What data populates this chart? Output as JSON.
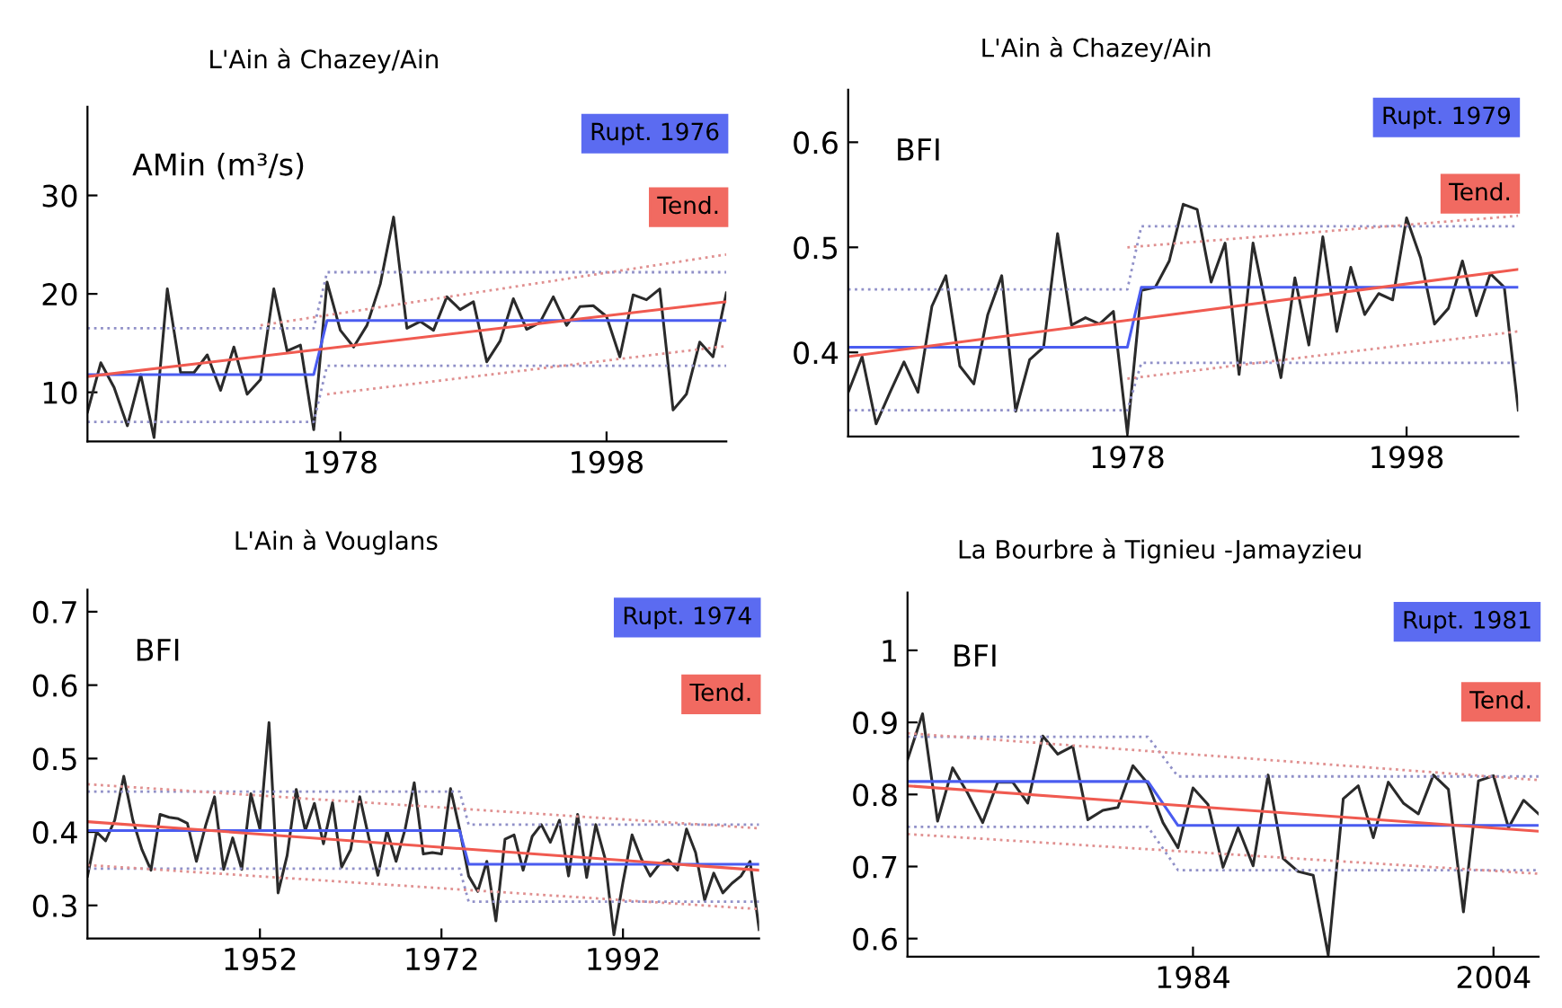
{
  "chart_data": [
    {
      "type": "line",
      "title": "L'Ain à Chazey/Ain",
      "ylabel": "AMin (m³/s)",
      "xlim": [
        1959,
        2007
      ],
      "ylim": [
        5,
        39
      ],
      "xticks": [
        1978,
        1998
      ],
      "yticks": [
        10,
        20,
        30
      ],
      "legend": "top right",
      "grid": false,
      "series": [
        {
          "color": "#2a2a2a",
          "x": [
            1959,
            1960,
            1961,
            1962,
            1963,
            1964,
            1965,
            1966,
            1967,
            1968,
            1969,
            1970,
            1971,
            1972,
            1973,
            1974,
            1975,
            1976,
            1977,
            1978,
            1979,
            1980,
            1981,
            1982,
            1983,
            1984,
            1985,
            1986,
            1987,
            1988,
            1989,
            1990,
            1991,
            1992,
            1993,
            1994,
            1995,
            1996,
            1997,
            1998,
            1999,
            2000,
            2001,
            2002,
            2003,
            2004,
            2005,
            2006,
            2007
          ],
          "values": [
            8,
            13,
            10.5,
            6.6,
            11.8,
            5.4,
            20.5,
            12,
            12,
            13.8,
            10.2,
            14.6,
            9.8,
            11.3,
            20.5,
            14.2,
            14.8,
            6.2,
            21.2,
            16.3,
            14.6,
            16.8,
            21,
            27.8,
            16.5,
            17.2,
            16.3,
            19.7,
            18.4,
            19.2,
            13.1,
            15.2,
            19.5,
            16.4,
            17.1,
            19.7,
            16.8,
            18.7,
            18.8,
            17.7,
            13.6,
            19.9,
            19.4,
            20.5,
            8.2,
            9.8,
            15.1,
            13.6,
            20.1
          ]
        },
        {
          "name": "Rupt. 1976",
          "color": "#4a5cf0",
          "x": [
            1959,
            1976,
            1977,
            2007
          ],
          "values": [
            11.8,
            11.8,
            17.3,
            17.3
          ]
        },
        {
          "name": "Tend.",
          "color": "#f05a50",
          "x": [
            1959,
            2007
          ],
          "values": [
            11.6,
            19.2
          ]
        },
        {
          "color": "#9090c8",
          "line_style": "dotted",
          "x": [
            1959,
            1976,
            1977,
            2007
          ],
          "values": [
            16.5,
            16.5,
            22.2,
            22.2
          ]
        },
        {
          "color": "#9090c8",
          "line_style": "dotted",
          "x": [
            1959,
            1976,
            1977,
            2007
          ],
          "values": [
            7,
            7,
            12.7,
            12.7
          ]
        },
        {
          "color": "#e09090",
          "line_style": "dotted",
          "x": [
            1972,
            2007
          ],
          "values": [
            16.8,
            24
          ]
        },
        {
          "color": "#e09090",
          "line_style": "dotted",
          "x": [
            1977,
            2007
          ],
          "values": [
            9.8,
            14.7
          ]
        }
      ]
    },
    {
      "type": "line",
      "title": "L'Ain à Chazey/Ain",
      "ylabel": "BFI",
      "xlim": [
        1958,
        2006
      ],
      "ylim": [
        0.32,
        0.65
      ],
      "xticks": [
        1978,
        1998
      ],
      "yticks": [
        0.4,
        0.5,
        0.6
      ],
      "legend": "top right",
      "grid": false,
      "series": [
        {
          "color": "#2a2a2a",
          "x": [
            1958,
            1959,
            1960,
            1961,
            1962,
            1963,
            1964,
            1965,
            1966,
            1967,
            1968,
            1969,
            1970,
            1971,
            1972,
            1973,
            1974,
            1975,
            1976,
            1977,
            1978,
            1979,
            1980,
            1981,
            1982,
            1983,
            1984,
            1985,
            1986,
            1987,
            1988,
            1989,
            1990,
            1991,
            1992,
            1993,
            1994,
            1995,
            1996,
            1997,
            1998,
            1999,
            2000,
            2001,
            2002,
            2003,
            2004,
            2005,
            2006
          ],
          "values": [
            0.362,
            0.396,
            0.332,
            0.362,
            0.391,
            0.362,
            0.444,
            0.473,
            0.387,
            0.37,
            0.436,
            0.473,
            0.344,
            0.393,
            0.405,
            0.513,
            0.426,
            0.433,
            0.427,
            0.439,
            0.323,
            0.459,
            0.462,
            0.487,
            0.541,
            0.536,
            0.467,
            0.504,
            0.379,
            0.504,
            0.439,
            0.376,
            0.471,
            0.407,
            0.51,
            0.42,
            0.481,
            0.436,
            0.456,
            0.45,
            0.528,
            0.49,
            0.427,
            0.442,
            0.487,
            0.435,
            0.475,
            0.462,
            0.345
          ]
        },
        {
          "name": "Rupt. 1979",
          "color": "#4a5cf0",
          "x": [
            1958,
            1978,
            1979,
            2006
          ],
          "values": [
            0.405,
            0.405,
            0.462,
            0.462
          ]
        },
        {
          "name": "Tend.",
          "color": "#f05a50",
          "x": [
            1958,
            2006
          ],
          "values": [
            0.396,
            0.479
          ]
        },
        {
          "color": "#9090c8",
          "line_style": "dotted",
          "x": [
            1958,
            1978,
            1979,
            2006
          ],
          "values": [
            0.46,
            0.46,
            0.52,
            0.52
          ]
        },
        {
          "color": "#9090c8",
          "line_style": "dotted",
          "x": [
            1958,
            1978,
            1979,
            2006
          ],
          "values": [
            0.345,
            0.345,
            0.39,
            0.39
          ]
        },
        {
          "color": "#e09090",
          "line_style": "dotted",
          "x": [
            1978,
            2006
          ],
          "values": [
            0.5,
            0.53
          ]
        },
        {
          "color": "#e09090",
          "line_style": "dotted",
          "x": [
            1978,
            2006
          ],
          "values": [
            0.375,
            0.42
          ]
        }
      ]
    },
    {
      "type": "line",
      "title": "L'Ain à Vouglans",
      "ylabel": "BFI",
      "xlim": [
        1933,
        2007
      ],
      "ylim": [
        0.255,
        0.73
      ],
      "xticks": [
        1952,
        1972,
        1992
      ],
      "yticks": [
        0.3,
        0.4,
        0.5,
        0.6,
        0.7
      ],
      "legend": "top right",
      "grid": false,
      "series": [
        {
          "color": "#2a2a2a",
          "x": [
            1933,
            1934,
            1935,
            1936,
            1937,
            1938,
            1939,
            1940,
            1941,
            1942,
            1943,
            1944,
            1945,
            1946,
            1947,
            1948,
            1949,
            1950,
            1951,
            1952,
            1953,
            1954,
            1955,
            1956,
            1957,
            1958,
            1959,
            1960,
            1961,
            1962,
            1963,
            1964,
            1965,
            1966,
            1967,
            1968,
            1969,
            1970,
            1971,
            1972,
            1973,
            1974,
            1975,
            1976,
            1977,
            1978,
            1979,
            1980,
            1981,
            1982,
            1983,
            1984,
            1985,
            1986,
            1987,
            1988,
            1989,
            1990,
            1991,
            1992,
            1993,
            1994,
            1995,
            1996,
            1997,
            1998,
            1999,
            2000,
            2001,
            2002,
            2003,
            2004,
            2005,
            2006,
            2007
          ],
          "values": [
            0.34,
            0.4,
            0.388,
            0.416,
            0.476,
            0.416,
            0.376,
            0.348,
            0.424,
            0.42,
            0.418,
            0.412,
            0.36,
            0.408,
            0.448,
            0.349,
            0.392,
            0.349,
            0.452,
            0.404,
            0.549,
            0.317,
            0.368,
            0.458,
            0.402,
            0.439,
            0.384,
            0.44,
            0.352,
            0.376,
            0.448,
            0.392,
            0.341,
            0.402,
            0.36,
            0.404,
            0.467,
            0.37,
            0.372,
            0.37,
            0.459,
            0.404,
            0.34,
            0.319,
            0.36,
            0.279,
            0.39,
            0.396,
            0.348,
            0.394,
            0.41,
            0.386,
            0.416,
            0.34,
            0.424,
            0.338,
            0.41,
            0.365,
            0.26,
            0.332,
            0.396,
            0.364,
            0.34,
            0.356,
            0.362,
            0.348,
            0.404,
            0.372,
            0.307,
            0.344,
            0.317,
            0.33,
            0.34,
            0.36,
            0.267
          ]
        },
        {
          "name": "Rupt. 1974",
          "color": "#4a5cf0",
          "x": [
            1933,
            1974,
            1975,
            2007
          ],
          "values": [
            0.402,
            0.402,
            0.356,
            0.356
          ]
        },
        {
          "name": "Tend.",
          "color": "#f05a50",
          "x": [
            1933,
            2007
          ],
          "values": [
            0.414,
            0.348
          ]
        },
        {
          "color": "#9090c8",
          "line_style": "dotted",
          "x": [
            1933,
            1974,
            1975,
            2007
          ],
          "values": [
            0.455,
            0.455,
            0.41,
            0.41
          ]
        },
        {
          "color": "#9090c8",
          "line_style": "dotted",
          "x": [
            1933,
            1974,
            1975,
            2007
          ],
          "values": [
            0.35,
            0.35,
            0.305,
            0.305
          ]
        },
        {
          "color": "#e09090",
          "line_style": "dotted",
          "x": [
            1933,
            2007
          ],
          "values": [
            0.465,
            0.405
          ]
        },
        {
          "color": "#e09090",
          "line_style": "dotted",
          "x": [
            1933,
            2007
          ],
          "values": [
            0.355,
            0.295
          ]
        }
      ]
    },
    {
      "type": "line",
      "title": "La Bourbre à Tignieu -Jamayzieu",
      "ylabel": "BFI",
      "xlim": [
        1965,
        2007
      ],
      "ylim": [
        0.575,
        1.08
      ],
      "xticks": [
        1984,
        2004
      ],
      "yticks": [
        0.6,
        0.7,
        0.8,
        0.9,
        1
      ],
      "legend": "top right",
      "grid": false,
      "series": [
        {
          "color": "#2a2a2a",
          "x": [
            1965,
            1966,
            1967,
            1968,
            1969,
            1970,
            1971,
            1972,
            1973,
            1974,
            1975,
            1976,
            1977,
            1978,
            1979,
            1980,
            1981,
            1982,
            1983,
            1984,
            1985,
            1986,
            1987,
            1988,
            1989,
            1990,
            1991,
            1992,
            1993,
            1994,
            1995,
            1996,
            1997,
            1998,
            1999,
            2000,
            2001,
            2002,
            2003,
            2004,
            2005,
            2006,
            2007
          ],
          "values": [
            0.848,
            0.912,
            0.763,
            0.837,
            0.802,
            0.761,
            0.817,
            0.817,
            0.788,
            0.881,
            0.856,
            0.867,
            0.765,
            0.778,
            0.782,
            0.84,
            0.815,
            0.761,
            0.726,
            0.809,
            0.786,
            0.699,
            0.754,
            0.701,
            0.827,
            0.711,
            0.693,
            0.688,
            0.577,
            0.794,
            0.812,
            0.74,
            0.817,
            0.788,
            0.773,
            0.827,
            0.807,
            0.637,
            0.819,
            0.826,
            0.754,
            0.792,
            0.773
          ]
        },
        {
          "name": "Rupt. 1981",
          "color": "#4a5cf0",
          "x": [
            1965,
            1981,
            1983,
            2007
          ],
          "values": [
            0.818,
            0.818,
            0.757,
            0.757
          ]
        },
        {
          "name": "Tend.",
          "color": "#f05a50",
          "x": [
            1965,
            2007
          ],
          "values": [
            0.812,
            0.749
          ]
        },
        {
          "color": "#9090c8",
          "line_style": "dotted",
          "x": [
            1965,
            1981,
            1983,
            2007
          ],
          "values": [
            0.88,
            0.88,
            0.825,
            0.825
          ]
        },
        {
          "color": "#9090c8",
          "line_style": "dotted",
          "x": [
            1965,
            1981,
            1983,
            2007
          ],
          "values": [
            0.755,
            0.755,
            0.695,
            0.695
          ]
        },
        {
          "color": "#e09090",
          "line_style": "dotted",
          "x": [
            1965,
            2007
          ],
          "values": [
            0.885,
            0.82
          ]
        },
        {
          "color": "#e09090",
          "line_style": "dotted",
          "x": [
            1965,
            2007
          ],
          "values": [
            0.745,
            0.69
          ]
        }
      ]
    }
  ]
}
